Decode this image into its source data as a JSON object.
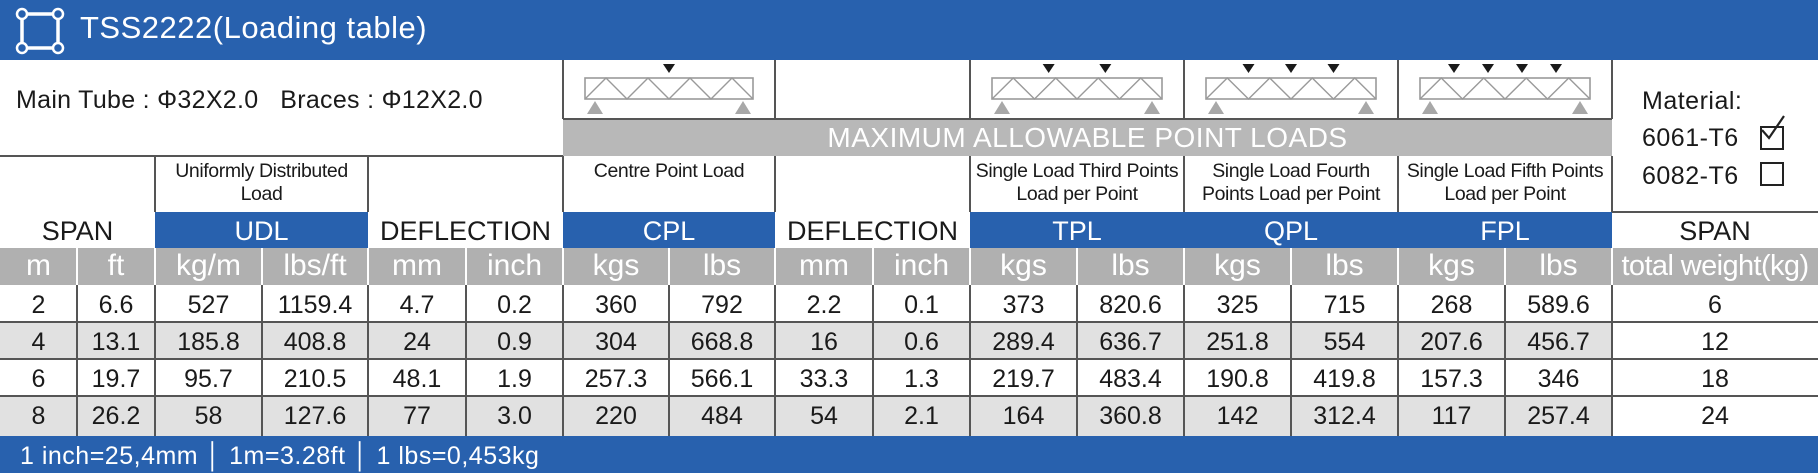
{
  "window": {
    "title": "TSS2222(Loading table)"
  },
  "specs": {
    "main_tube": "Main Tube : Φ32X2.0",
    "braces": "Braces : Φ12X2.0"
  },
  "max_band": "MAXIMUM ALLOWABLE POINT LOADS",
  "material": {
    "label": "Material:",
    "options": [
      {
        "name": "6061-T6",
        "checked": true
      },
      {
        "name": "6082-T6",
        "checked": false
      }
    ]
  },
  "descriptions": {
    "udl": "Uniformly Distributed Load",
    "cpl": "Centre Point Load",
    "tpl": "Single Load Third Points Load per Point",
    "qpl": "Single Load Fourth Points Load per Point",
    "fpl": "Single Load Fifth Points Load per Point"
  },
  "groups": {
    "span": "SPAN",
    "udl": "UDL",
    "deflection1": "DEFLECTION",
    "cpl": "CPL",
    "deflection2": "DEFLECTION",
    "tpl": "TPL",
    "qpl": "QPL",
    "fpl": "FPL",
    "span2": "SPAN"
  },
  "units": [
    "m",
    "ft",
    "kg/m",
    "lbs/ft",
    "mm",
    "inch",
    "kgs",
    "lbs",
    "mm",
    "inch",
    "kgs",
    "lbs",
    "kgs",
    "lbs",
    "kgs",
    "lbs",
    "total weight(kg)"
  ],
  "rows": [
    [
      "2",
      "6.6",
      "527",
      "1159.4",
      "4.7",
      "0.2",
      "360",
      "792",
      "2.2",
      "0.1",
      "373",
      "820.6",
      "325",
      "715",
      "268",
      "589.6",
      "6"
    ],
    [
      "4",
      "13.1",
      "185.8",
      "408.8",
      "24",
      "0.9",
      "304",
      "668.8",
      "16",
      "0.6",
      "289.4",
      "636.7",
      "251.8",
      "554",
      "207.6",
      "456.7",
      "12"
    ],
    [
      "6",
      "19.7",
      "95.7",
      "210.5",
      "48.1",
      "1.9",
      "257.3",
      "566.1",
      "33.3",
      "1.3",
      "219.7",
      "483.4",
      "190.8",
      "419.8",
      "157.3",
      "346",
      "18"
    ],
    [
      "8",
      "26.2",
      "58",
      "127.6",
      "77",
      "3.0",
      "220",
      "484",
      "54",
      "2.1",
      "164",
      "360.8",
      "142",
      "312.4",
      "117",
      "257.4",
      "24"
    ]
  ],
  "footer": "1 inch=25,4mm │ 1m=3.28ft │ 1 lbs=0,453kg",
  "colors": {
    "header_blue": "#2861ae",
    "band_grey": "#b0b0b0",
    "row_alt": "#e1e1e1"
  }
}
